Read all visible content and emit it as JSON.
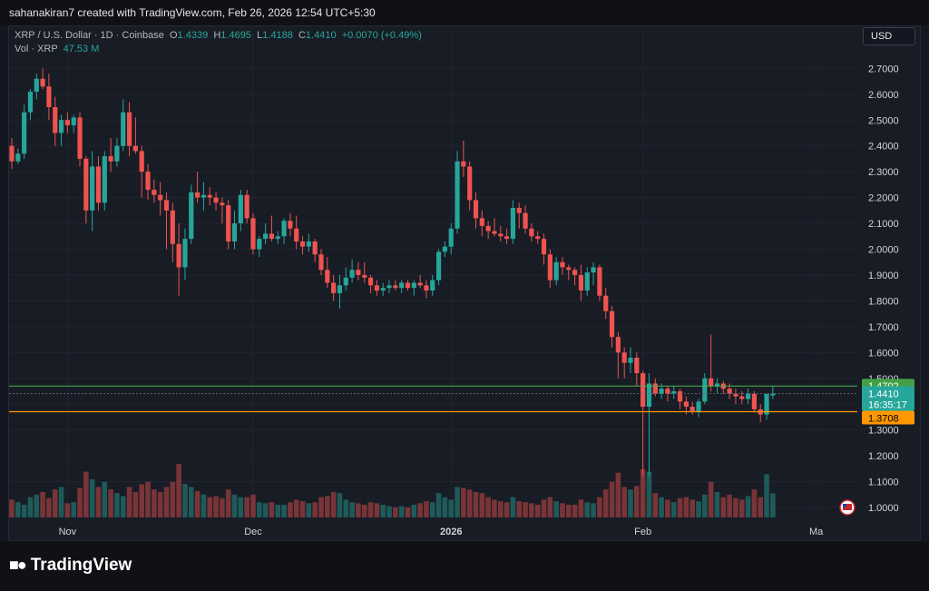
{
  "header": {
    "attribution": "sahanakiran7 created with TradingView.com, Feb 26, 2026 12:54 UTC+5:30"
  },
  "legend": {
    "symbol": "XRP / U.S. Dollar · 1D · Coinbase",
    "o_label": "O",
    "o": "1.4339",
    "h_label": "H",
    "h": "1.4695",
    "l_label": "L",
    "l": "1.4188",
    "c_label": "C",
    "c": "1.4410",
    "change": "+0.0070 (+0.49%)",
    "vol_label": "Vol · XRP",
    "vol": "47.53 M"
  },
  "currency_button": "USD",
  "price_labels": {
    "upper": "1.4702",
    "current": "1.4410",
    "countdown": "16:35:17",
    "lower": "1.3708"
  },
  "colors": {
    "up": "#26a69a",
    "down": "#ef5350",
    "upper_line": "#4caf50",
    "lower_line": "#ff9800",
    "background": "#181c25"
  },
  "footer": {
    "brand": "TradingView",
    "logo_icon": "tradingview-logo-icon"
  },
  "chart_data": {
    "type": "candlestick",
    "y_ticks": [
      "2.7000",
      "2.6000",
      "2.5000",
      "2.4000",
      "2.3000",
      "2.2000",
      "2.1000",
      "2.0000",
      "1.9000",
      "1.8000",
      "1.7000",
      "1.6000",
      "1.5000",
      "1.4000",
      "1.3000",
      "1.2000",
      "1.1000",
      "1.0000"
    ],
    "ylim": [
      0.97,
      2.78
    ],
    "x_ticks": [
      {
        "label": "Nov",
        "index": 9
      },
      {
        "label": "Dec",
        "index": 39
      },
      {
        "label": "2026",
        "index": 71
      },
      {
        "label": "Feb",
        "index": 102
      },
      {
        "label": "Ma",
        "index": 130
      }
    ],
    "levels": {
      "upper": 1.4702,
      "current": 1.441,
      "lower": 1.3708
    },
    "candles": [
      [
        2.4,
        2.43,
        2.31,
        2.34,
        35
      ],
      [
        2.34,
        2.39,
        2.33,
        2.37,
        30
      ],
      [
        2.37,
        2.56,
        2.35,
        2.53,
        25
      ],
      [
        2.53,
        2.62,
        2.5,
        2.61,
        40
      ],
      [
        2.61,
        2.68,
        2.58,
        2.66,
        45
      ],
      [
        2.66,
        2.7,
        2.62,
        2.63,
        50
      ],
      [
        2.63,
        2.68,
        2.5,
        2.55,
        38
      ],
      [
        2.55,
        2.59,
        2.4,
        2.45,
        55
      ],
      [
        2.45,
        2.52,
        2.4,
        2.5,
        60
      ],
      [
        2.5,
        2.53,
        2.45,
        2.48,
        28
      ],
      [
        2.48,
        2.52,
        2.45,
        2.51,
        30
      ],
      [
        2.51,
        2.53,
        2.32,
        2.35,
        58
      ],
      [
        2.35,
        2.36,
        2.1,
        2.15,
        90
      ],
      [
        2.15,
        2.38,
        2.07,
        2.32,
        75
      ],
      [
        2.32,
        2.36,
        2.15,
        2.18,
        60
      ],
      [
        2.18,
        2.38,
        2.15,
        2.36,
        70
      ],
      [
        2.36,
        2.43,
        2.3,
        2.34,
        55
      ],
      [
        2.34,
        2.43,
        2.32,
        2.4,
        48
      ],
      [
        2.4,
        2.58,
        2.38,
        2.53,
        42
      ],
      [
        2.53,
        2.57,
        2.36,
        2.4,
        60
      ],
      [
        2.4,
        2.51,
        2.37,
        2.38,
        50
      ],
      [
        2.38,
        2.4,
        2.2,
        2.3,
        65
      ],
      [
        2.3,
        2.33,
        2.19,
        2.23,
        70
      ],
      [
        2.23,
        2.27,
        2.18,
        2.21,
        55
      ],
      [
        2.21,
        2.26,
        2.13,
        2.19,
        50
      ],
      [
        2.19,
        2.22,
        2.0,
        2.15,
        60
      ],
      [
        2.15,
        2.18,
        1.95,
        2.02,
        70
      ],
      [
        2.02,
        2.1,
        1.82,
        1.93,
        105
      ],
      [
        1.93,
        2.08,
        1.88,
        2.04,
        66
      ],
      [
        2.04,
        2.25,
        2.02,
        2.22,
        60
      ],
      [
        2.22,
        2.3,
        2.18,
        2.2,
        52
      ],
      [
        2.2,
        2.26,
        2.15,
        2.21,
        45
      ],
      [
        2.21,
        2.24,
        2.17,
        2.2,
        40
      ],
      [
        2.2,
        2.22,
        2.15,
        2.18,
        42
      ],
      [
        2.18,
        2.2,
        2.1,
        2.17,
        38
      ],
      [
        2.17,
        2.19,
        2.0,
        2.03,
        55
      ],
      [
        2.03,
        2.15,
        2.0,
        2.1,
        45
      ],
      [
        2.1,
        2.23,
        2.07,
        2.21,
        40
      ],
      [
        2.21,
        2.23,
        2.1,
        2.12,
        40
      ],
      [
        2.12,
        2.14,
        1.98,
        2.0,
        45
      ],
      [
        2.0,
        2.05,
        1.97,
        2.04,
        30
      ],
      [
        2.04,
        2.1,
        2.02,
        2.06,
        28
      ],
      [
        2.06,
        2.13,
        2.03,
        2.04,
        30
      ],
      [
        2.04,
        2.07,
        2.02,
        2.05,
        25
      ],
      [
        2.05,
        2.12,
        2.02,
        2.11,
        25
      ],
      [
        2.11,
        2.14,
        2.05,
        2.08,
        30
      ],
      [
        2.08,
        2.13,
        2.0,
        2.03,
        35
      ],
      [
        2.03,
        2.05,
        1.98,
        2.01,
        32
      ],
      [
        2.01,
        2.06,
        1.99,
        2.03,
        28
      ],
      [
        2.03,
        2.04,
        1.95,
        1.98,
        30
      ],
      [
        1.98,
        2.0,
        1.9,
        1.92,
        40
      ],
      [
        1.92,
        1.97,
        1.85,
        1.87,
        42
      ],
      [
        1.87,
        1.9,
        1.8,
        1.83,
        50
      ],
      [
        1.83,
        1.9,
        1.77,
        1.86,
        48
      ],
      [
        1.86,
        1.93,
        1.84,
        1.89,
        35
      ],
      [
        1.89,
        1.96,
        1.87,
        1.92,
        30
      ],
      [
        1.92,
        1.95,
        1.88,
        1.9,
        28
      ],
      [
        1.9,
        1.95,
        1.87,
        1.89,
        25
      ],
      [
        1.89,
        1.9,
        1.83,
        1.86,
        30
      ],
      [
        1.86,
        1.88,
        1.82,
        1.84,
        28
      ],
      [
        1.84,
        1.87,
        1.82,
        1.85,
        25
      ],
      [
        1.85,
        1.88,
        1.83,
        1.86,
        22
      ],
      [
        1.86,
        1.88,
        1.84,
        1.85,
        20
      ],
      [
        1.85,
        1.88,
        1.83,
        1.87,
        22
      ],
      [
        1.87,
        1.88,
        1.84,
        1.85,
        20
      ],
      [
        1.85,
        1.88,
        1.82,
        1.87,
        25
      ],
      [
        1.87,
        1.9,
        1.85,
        1.86,
        28
      ],
      [
        1.86,
        1.88,
        1.81,
        1.84,
        32
      ],
      [
        1.84,
        1.9,
        1.82,
        1.88,
        30
      ],
      [
        1.88,
        2.0,
        1.86,
        1.99,
        48
      ],
      [
        1.99,
        2.03,
        1.97,
        2.01,
        40
      ],
      [
        2.01,
        2.1,
        1.98,
        2.08,
        35
      ],
      [
        2.08,
        2.38,
        2.06,
        2.34,
        60
      ],
      [
        2.34,
        2.42,
        2.28,
        2.32,
        58
      ],
      [
        2.32,
        2.34,
        2.15,
        2.19,
        55
      ],
      [
        2.19,
        2.22,
        2.08,
        2.12,
        50
      ],
      [
        2.12,
        2.15,
        2.05,
        2.09,
        48
      ],
      [
        2.09,
        2.11,
        2.04,
        2.07,
        40
      ],
      [
        2.07,
        2.12,
        2.05,
        2.06,
        35
      ],
      [
        2.06,
        2.09,
        2.03,
        2.05,
        32
      ],
      [
        2.05,
        2.08,
        2.02,
        2.04,
        30
      ],
      [
        2.04,
        2.19,
        2.02,
        2.16,
        40
      ],
      [
        2.16,
        2.18,
        2.08,
        2.14,
        32
      ],
      [
        2.14,
        2.17,
        2.06,
        2.08,
        30
      ],
      [
        2.08,
        2.1,
        2.03,
        2.05,
        28
      ],
      [
        2.05,
        2.07,
        2.02,
        2.04,
        25
      ],
      [
        2.04,
        2.06,
        1.94,
        1.98,
        35
      ],
      [
        1.98,
        2.0,
        1.85,
        1.88,
        40
      ],
      [
        1.88,
        1.97,
        1.86,
        1.95,
        32
      ],
      [
        1.95,
        1.97,
        1.9,
        1.93,
        28
      ],
      [
        1.93,
        1.94,
        1.88,
        1.92,
        25
      ],
      [
        1.92,
        1.93,
        1.86,
        1.9,
        25
      ],
      [
        1.9,
        1.94,
        1.8,
        1.84,
        35
      ],
      [
        1.84,
        1.93,
        1.82,
        1.91,
        30
      ],
      [
        1.91,
        1.95,
        1.86,
        1.93,
        28
      ],
      [
        1.93,
        1.94,
        1.8,
        1.82,
        40
      ],
      [
        1.82,
        1.85,
        1.73,
        1.76,
        55
      ],
      [
        1.76,
        1.78,
        1.62,
        1.66,
        70
      ],
      [
        1.66,
        1.68,
        1.5,
        1.6,
        88
      ],
      [
        1.6,
        1.62,
        1.5,
        1.56,
        60
      ],
      [
        1.56,
        1.62,
        1.52,
        1.58,
        55
      ],
      [
        1.58,
        1.6,
        1.47,
        1.52,
        62
      ],
      [
        1.52,
        1.53,
        1.12,
        1.39,
        95
      ],
      [
        1.39,
        1.52,
        1.12,
        1.48,
        90
      ],
      [
        1.48,
        1.5,
        1.43,
        1.44,
        48
      ],
      [
        1.44,
        1.48,
        1.42,
        1.46,
        40
      ],
      [
        1.46,
        1.47,
        1.41,
        1.44,
        35
      ],
      [
        1.44,
        1.47,
        1.42,
        1.45,
        30
      ],
      [
        1.45,
        1.46,
        1.38,
        1.41,
        38
      ],
      [
        1.41,
        1.43,
        1.36,
        1.39,
        40
      ],
      [
        1.39,
        1.41,
        1.36,
        1.37,
        35
      ],
      [
        1.37,
        1.42,
        1.35,
        1.41,
        32
      ],
      [
        1.41,
        1.52,
        1.4,
        1.5,
        45
      ],
      [
        1.5,
        1.67,
        1.45,
        1.47,
        70
      ],
      [
        1.47,
        1.5,
        1.44,
        1.48,
        50
      ],
      [
        1.48,
        1.49,
        1.44,
        1.46,
        40
      ],
      [
        1.46,
        1.48,
        1.42,
        1.44,
        45
      ],
      [
        1.44,
        1.46,
        1.4,
        1.43,
        38
      ],
      [
        1.43,
        1.45,
        1.4,
        1.42,
        35
      ],
      [
        1.42,
        1.46,
        1.4,
        1.44,
        42
      ],
      [
        1.44,
        1.45,
        1.37,
        1.38,
        55
      ],
      [
        1.38,
        1.4,
        1.33,
        1.36,
        40
      ],
      [
        1.36,
        1.44,
        1.34,
        1.44,
        85
      ],
      [
        1.4339,
        1.4695,
        1.4188,
        1.441,
        47.53
      ]
    ]
  }
}
